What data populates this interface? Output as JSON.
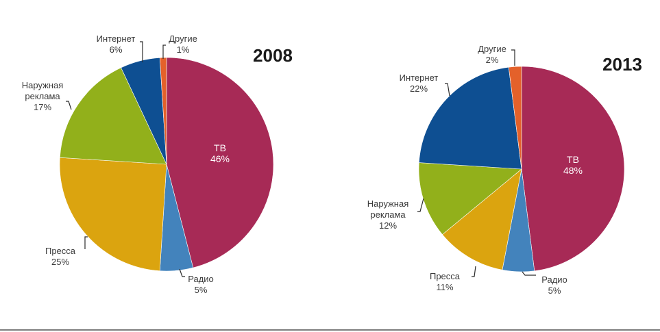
{
  "colors": {
    "tv": "#A72A56",
    "radio": "#4383BC",
    "press": "#DBA40F",
    "outdoor": "#92B01B",
    "internet": "#0E4F92",
    "other": "#E4612A"
  },
  "chart_data": [
    {
      "type": "pie",
      "title": "2008",
      "slices": [
        {
          "key": "tv",
          "name": "ТВ",
          "lines": [
            "ТВ"
          ],
          "pct_label": "46%",
          "value": 46
        },
        {
          "key": "radio",
          "name": "Радио",
          "lines": [
            "Радио"
          ],
          "pct_label": "5%",
          "value": 5
        },
        {
          "key": "press",
          "name": "Пресса",
          "lines": [
            "Пресса"
          ],
          "pct_label": "25%",
          "value": 25
        },
        {
          "key": "outdoor",
          "name": "Наружная реклама",
          "lines": [
            "Наружная",
            "реклама"
          ],
          "pct_label": "17%",
          "value": 17
        },
        {
          "key": "internet",
          "name": "Интернет",
          "lines": [
            "Интернет"
          ],
          "pct_label": "6%",
          "value": 6
        },
        {
          "key": "other",
          "name": "Другие",
          "lines": [
            "Другие"
          ],
          "pct_label": "1%",
          "value": 1
        }
      ]
    },
    {
      "type": "pie",
      "title": "2013",
      "slices": [
        {
          "key": "tv",
          "name": "ТВ",
          "lines": [
            "ТВ"
          ],
          "pct_label": "48%",
          "value": 48
        },
        {
          "key": "radio",
          "name": "Радио",
          "lines": [
            "Радио"
          ],
          "pct_label": "5%",
          "value": 5
        },
        {
          "key": "press",
          "name": "Пресса",
          "lines": [
            "Пресса"
          ],
          "pct_label": "11%",
          "value": 11
        },
        {
          "key": "outdoor",
          "name": "Наружная реклама",
          "lines": [
            "Наружная",
            "реклама"
          ],
          "pct_label": "12%",
          "value": 12
        },
        {
          "key": "internet",
          "name": "Интернет",
          "lines": [
            "Интернет"
          ],
          "pct_label": "22%",
          "value": 22
        },
        {
          "key": "other",
          "name": "Другие",
          "lines": [
            "Другие"
          ],
          "pct_label": "2%",
          "value": 2
        }
      ]
    }
  ]
}
